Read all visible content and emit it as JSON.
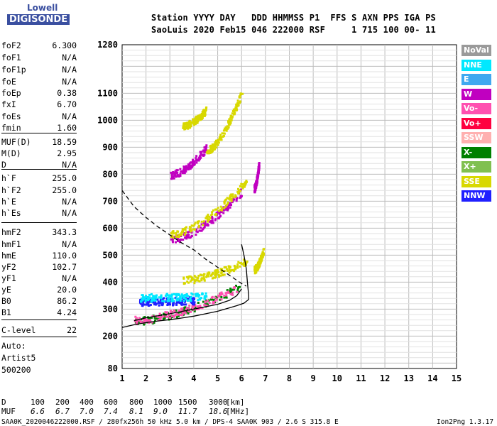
{
  "logo": {
    "line1": "Lowell",
    "line2": "DIGISONDE"
  },
  "header": {
    "row1": "Station YYYY DAY   DDD HHMMSS P1  FFS S AXN PPS IGA PS",
    "row2": "SaoLuis 2020 Feb15 046 222000 RSF     1 715 100 00- 11"
  },
  "params": [
    {
      "name": "foF2",
      "value": "6.300"
    },
    {
      "name": "foF1",
      "value": "N/A"
    },
    {
      "name": "foF1p",
      "value": "N/A"
    },
    {
      "name": "foE",
      "value": "N/A"
    },
    {
      "name": "foEp",
      "value": "0.38"
    },
    {
      "name": "fxI",
      "value": "6.70"
    },
    {
      "name": "foEs",
      "value": "N/A"
    },
    {
      "name": "fmin",
      "value": "1.60"
    },
    {
      "name": "MUF(D)",
      "value": "18.59"
    },
    {
      "name": "M(D)",
      "value": "2.95"
    },
    {
      "name": "D",
      "value": "N/A"
    },
    {
      "name": "h`F",
      "value": "255.0"
    },
    {
      "name": "h`F2",
      "value": "255.0"
    },
    {
      "name": "h`E",
      "value": "N/A"
    },
    {
      "name": "h`Es",
      "value": "N/A"
    },
    {
      "name": "hmF2",
      "value": "343.3"
    },
    {
      "name": "hmF1",
      "value": "N/A"
    },
    {
      "name": "hmE",
      "value": "110.0"
    },
    {
      "name": "yF2",
      "value": "102.7"
    },
    {
      "name": "yF1",
      "value": "N/A"
    },
    {
      "name": "yE",
      "value": "20.0"
    },
    {
      "name": "B0",
      "value": "86.2"
    },
    {
      "name": "B1",
      "value": "4.24"
    },
    {
      "name": "C-level",
      "value": "22"
    }
  ],
  "auto": {
    "line1": "Auto:",
    "line2": "Artist5",
    "line3": "500200"
  },
  "legend": [
    {
      "label": "NoVal",
      "color": "#9a9a9a",
      "text_color": "#ffffff"
    },
    {
      "label": "NNE",
      "color": "#00e8ff",
      "text_color": "#ffffff"
    },
    {
      "label": "E",
      "color": "#40a8f0",
      "text_color": "#ffffff"
    },
    {
      "label": "W",
      "color": "#c000c0",
      "text_color": "#ffffff"
    },
    {
      "label": "Vo-",
      "color": "#ff50b0",
      "text_color": "#ffffff"
    },
    {
      "label": "Vo+",
      "color": "#ff0040",
      "text_color": "#ffffff"
    },
    {
      "label": "SSW",
      "color": "#ffb0b0",
      "text_color": "#ffffff"
    },
    {
      "label": "X-",
      "color": "#008000",
      "text_color": "#ffffff"
    },
    {
      "label": "X+",
      "color": "#80c050",
      "text_color": "#ffffff"
    },
    {
      "label": "SSE",
      "color": "#d8d800",
      "text_color": "#ffffff"
    },
    {
      "label": "NNW",
      "color": "#2020ff",
      "text_color": "#ffffff"
    }
  ],
  "muf_table": {
    "d_label": "D",
    "d_values": [
      "100",
      "200",
      "400",
      "600",
      "800",
      "1000",
      "1500",
      "3000",
      "[km]"
    ],
    "muf_label": "MUF",
    "muf_values": [
      "6.6",
      "6.7",
      "7.0",
      "7.4",
      "8.1",
      "9.0",
      "11.7",
      "18.6",
      "[MHz]"
    ]
  },
  "footer": {
    "left": "SAA0K_2020046222000.RSF / 280fx256h 50 kHz 5.0 km / DPS-4 SAA0K 903 / 2.6 S 315.8 E",
    "right": "Ion2Png 1.3.17"
  },
  "chart_data": {
    "type": "scatter",
    "xlabel": "",
    "ylabel": "",
    "xlim": [
      1,
      15
    ],
    "ylim": [
      80,
      1280
    ],
    "x_ticks": [
      1,
      2,
      3,
      4,
      5,
      6,
      7,
      8,
      9,
      10,
      11,
      12,
      13,
      14,
      15
    ],
    "y_ticks": [
      80,
      200,
      300,
      400,
      500,
      600,
      700,
      800,
      900,
      1000,
      1100,
      1280
    ],
    "curves": [
      {
        "name": "profile",
        "style": "solid",
        "x": [
          1.0,
          1.5,
          2.0,
          2.5,
          3.0,
          3.5,
          4.0,
          4.5,
          5.0,
          5.5,
          5.8,
          6.1,
          6.3,
          6.3,
          6.25,
          6.2,
          6.1,
          6.0
        ],
        "y": [
          232,
          242,
          250,
          256,
          261,
          267,
          274,
          283,
          292,
          305,
          313,
          322,
          336,
          350,
          395,
          450,
          500,
          540
        ]
      },
      {
        "name": "virtual-height trace",
        "style": "solid",
        "x": [
          1.5,
          2.0,
          3.0,
          4.0,
          5.0,
          5.5,
          5.8,
          6.0
        ],
        "y": [
          257,
          268,
          283,
          300,
          318,
          333,
          350,
          375
        ]
      },
      {
        "name": "MUF curve",
        "style": "dashed",
        "x": [
          1.0,
          1.5,
          2.0,
          2.5,
          3.0,
          3.5,
          4.0,
          4.5,
          5.0,
          5.5,
          6.0,
          6.2
        ],
        "y": [
          740,
          680,
          640,
          605,
          575,
          545,
          520,
          485,
          455,
          425,
          395,
          385
        ]
      }
    ],
    "traces": [
      {
        "label": "X-",
        "x_range": [
          1.5,
          6.0
        ],
        "h_start": 258,
        "h_end": 390
      },
      {
        "label": "Vo-",
        "x_range": [
          1.5,
          5.8
        ],
        "h_start": 262,
        "h_end": 380
      },
      {
        "label": "W",
        "x_range": [
          3.0,
          6.0
        ],
        "h_start": 560,
        "h_end": 740
      },
      {
        "label": "SSE",
        "x_range": [
          3.0,
          6.2
        ],
        "h_start": 580,
        "h_end": 780
      },
      {
        "label": "W",
        "x_range": [
          3.0,
          4.5
        ],
        "h_start": 800,
        "h_end": 900
      },
      {
        "label": "SSE",
        "x_range": [
          4.5,
          6.0
        ],
        "h_start": 890,
        "h_end": 1110
      },
      {
        "label": "NNW",
        "x_range": [
          1.7,
          4.0
        ],
        "h_start": 330,
        "h_end": 335
      },
      {
        "label": "SSE",
        "x_range": [
          3.5,
          6.2
        ],
        "h_start": 410,
        "h_end": 480
      },
      {
        "label": "SSE",
        "x_range": [
          6.5,
          6.9
        ],
        "h_start": 450,
        "h_end": 520
      },
      {
        "label": "SSE",
        "x_range": [
          3.5,
          4.5
        ],
        "h_start": 980,
        "h_end": 1040
      },
      {
        "label": "W",
        "x_range": [
          6.5,
          6.7
        ],
        "h_start": 750,
        "h_end": 840
      },
      {
        "label": "NNE",
        "x_range": [
          1.7,
          4.5
        ],
        "h_start": 345,
        "h_end": 350
      }
    ]
  }
}
